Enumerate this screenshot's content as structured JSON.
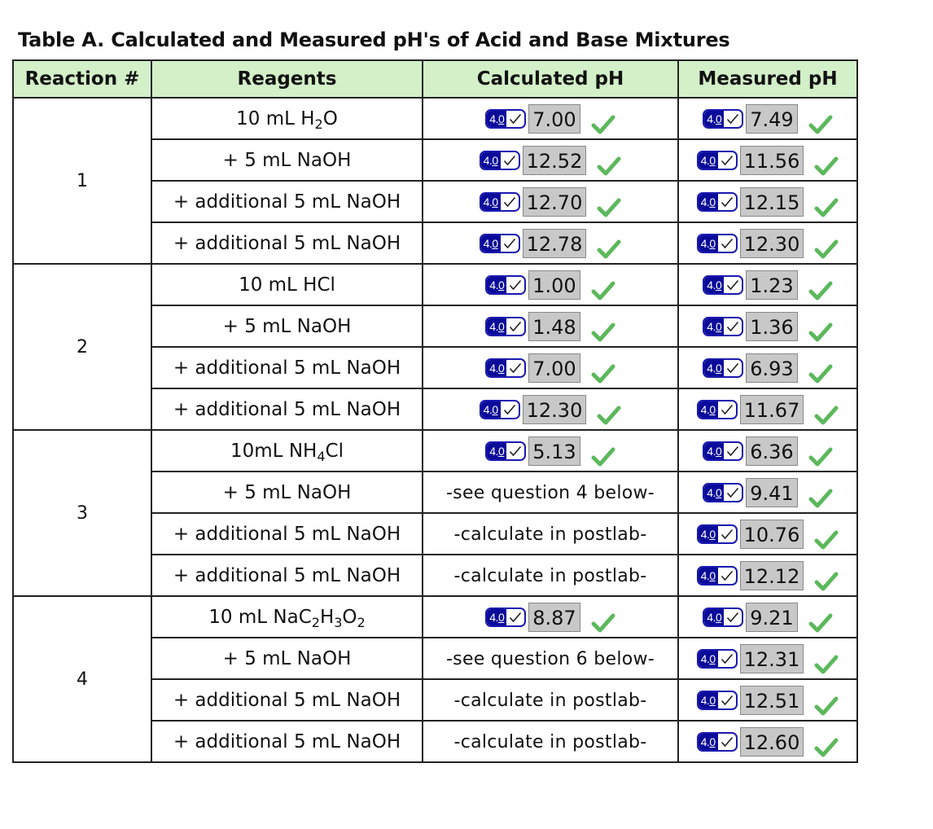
{
  "title": "Table A. Calculated and Measured pH's of Acid and Base Mixtures",
  "headers": [
    "Reaction #",
    "Reagents",
    "Calculated pH",
    "Measured pH"
  ],
  "badge_label": "4.0",
  "colors": {
    "header_bg": "#d3f0c8",
    "badge_blue": "#0b0b9a",
    "value_bg": "#c8c8c8",
    "check_green": "#5cb85c"
  },
  "reactions": [
    {
      "number": "1",
      "rows": [
        {
          "reagent": "10 mL H₂O",
          "calculated": "7.00",
          "measured": "7.49"
        },
        {
          "reagent": "+ 5 mL NaOH",
          "calculated": "12.52",
          "measured": "11.56"
        },
        {
          "reagent": "+ additional 5 mL NaOH",
          "calculated": "12.70",
          "measured": "12.15"
        },
        {
          "reagent": "+ additional 5 mL NaOH",
          "calculated": "12.78",
          "measured": "12.30"
        }
      ]
    },
    {
      "number": "2",
      "rows": [
        {
          "reagent": "10 mL HCl",
          "calculated": "1.00",
          "measured": "1.23"
        },
        {
          "reagent": "+ 5 mL NaOH",
          "calculated": "1.48",
          "measured": "1.36"
        },
        {
          "reagent": "+ additional 5 mL NaOH",
          "calculated": "7.00",
          "measured": "6.93"
        },
        {
          "reagent": "+ additional 5 mL NaOH",
          "calculated": "12.30",
          "measured": "11.67"
        }
      ]
    },
    {
      "number": "3",
      "rows": [
        {
          "reagent": "10mL NH₄Cl",
          "calculated": "5.13",
          "measured": "6.36"
        },
        {
          "reagent": "+ 5 mL NaOH",
          "calculated_note": "-see question 4 below-",
          "measured": "9.41"
        },
        {
          "reagent": "+ additional 5 mL NaOH",
          "calculated_note": "-calculate in postlab-",
          "measured": "10.76"
        },
        {
          "reagent": "+ additional 5 mL NaOH",
          "calculated_note": "-calculate in postlab-",
          "measured": "12.12"
        }
      ]
    },
    {
      "number": "4",
      "rows": [
        {
          "reagent": "10 mL NaC₂H₃O₂",
          "calculated": "8.87",
          "measured": "9.21"
        },
        {
          "reagent": "+ 5 mL NaOH",
          "calculated_note": "-see question 6 below-",
          "measured": "12.31"
        },
        {
          "reagent": "+ additional 5 mL NaOH",
          "calculated_note": "-calculate in postlab-",
          "measured": "12.51"
        },
        {
          "reagent": "+ additional 5 mL NaOH",
          "calculated_note": "-calculate in postlab-",
          "measured": "12.60"
        }
      ]
    }
  ]
}
